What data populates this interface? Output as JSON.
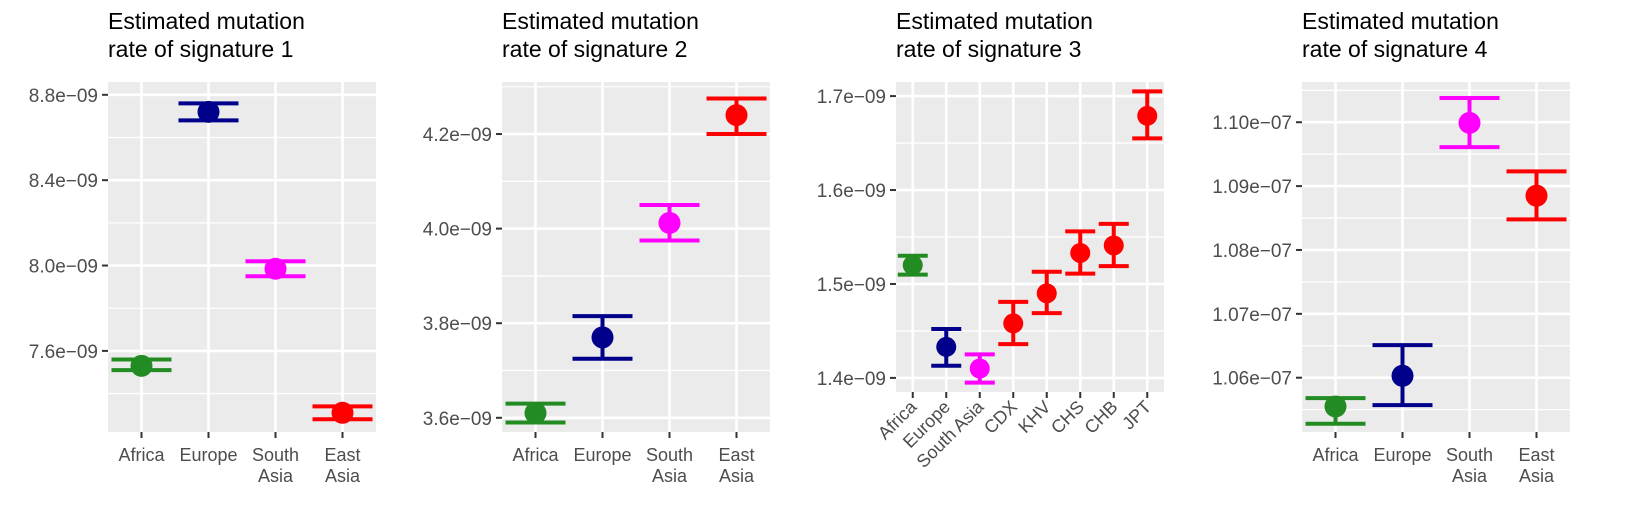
{
  "colors": {
    "panel_background": "#EBEBEB",
    "gridline": "#FFFFFF",
    "tick": "#333333",
    "tick_label": "#4D4D4D",
    "Africa": "#228B22",
    "Europe": "#00008B",
    "South Asia": "#FF00FF",
    "East Asia": "#FF0000"
  },
  "chart_data": [
    {
      "type": "scatter",
      "title_lines": [
        "Estimated mutation",
        "rate of signature 1"
      ],
      "categories": [
        "Africa",
        "Europe",
        "South Asia",
        "East Asia"
      ],
      "category_label_lines": [
        [
          "Africa"
        ],
        [
          "Europe"
        ],
        [
          "South",
          "Asia"
        ],
        [
          "East",
          "Asia"
        ]
      ],
      "values": [
        7.53e-09,
        8.72e-09,
        7.985e-09,
        7.31e-09
      ],
      "error_low": [
        7.51e-09,
        8.68e-09,
        7.95e-09,
        7.28e-09
      ],
      "error_high": [
        7.56e-09,
        8.76e-09,
        8.02e-09,
        7.34e-09
      ],
      "point_colors": [
        "#228B22",
        "#00008B",
        "#FF00FF",
        "#FF0000"
      ],
      "y_ticks": [
        7.6e-09,
        8e-09,
        8.4e-09,
        8.8e-09
      ],
      "y_tick_labels": [
        "7.6e−09",
        "8.0e−09",
        "8.4e−09",
        "8.8e−09"
      ],
      "ylim": [
        7.22e-09,
        8.86e-09
      ],
      "grid": true,
      "rotate_x_labels": false
    },
    {
      "type": "scatter",
      "title_lines": [
        "Estimated mutation",
        "rate of signature 2"
      ],
      "categories": [
        "Africa",
        "Europe",
        "South Asia",
        "East Asia"
      ],
      "category_label_lines": [
        [
          "Africa"
        ],
        [
          "Europe"
        ],
        [
          "South",
          "Asia"
        ],
        [
          "East",
          "Asia"
        ]
      ],
      "values": [
        3.61e-09,
        3.77e-09,
        4.012e-09,
        4.24e-09
      ],
      "error_low": [
        3.59e-09,
        3.725e-09,
        3.975e-09,
        4.2e-09
      ],
      "error_high": [
        3.63e-09,
        3.815e-09,
        4.05e-09,
        4.275e-09
      ],
      "point_colors": [
        "#228B22",
        "#00008B",
        "#FF00FF",
        "#FF0000"
      ],
      "y_ticks": [
        3.6e-09,
        3.8e-09,
        4e-09,
        4.2e-09
      ],
      "y_tick_labels": [
        "3.6e−09",
        "3.8e−09",
        "4.0e−09",
        "4.2e−09"
      ],
      "ylim": [
        3.57e-09,
        4.31e-09
      ],
      "grid": true,
      "rotate_x_labels": false
    },
    {
      "type": "scatter",
      "title_lines": [
        "Estimated mutation",
        "rate of  signature 3"
      ],
      "categories": [
        "Africa",
        "Europe",
        "South Asia",
        "CDX",
        "KHV",
        "CHS",
        "CHB",
        "JPT"
      ],
      "category_label_lines": [
        [
          "Africa"
        ],
        [
          "Europe"
        ],
        [
          "South Asia"
        ],
        [
          "CDX"
        ],
        [
          "KHV"
        ],
        [
          "CHS"
        ],
        [
          "CHB"
        ],
        [
          "JPT"
        ]
      ],
      "values": [
        1.52e-09,
        1.433e-09,
        1.41e-09,
        1.458e-09,
        1.49e-09,
        1.533e-09,
        1.541e-09,
        1.679e-09
      ],
      "error_low": [
        1.51e-09,
        1.413e-09,
        1.395e-09,
        1.436e-09,
        1.469e-09,
        1.511e-09,
        1.519e-09,
        1.655e-09
      ],
      "error_high": [
        1.53e-09,
        1.452e-09,
        1.425e-09,
        1.481e-09,
        1.513e-09,
        1.556e-09,
        1.564e-09,
        1.705e-09
      ],
      "point_colors": [
        "#228B22",
        "#00008B",
        "#FF00FF",
        "#FF0000",
        "#FF0000",
        "#FF0000",
        "#FF0000",
        "#FF0000"
      ],
      "y_ticks": [
        1.4e-09,
        1.5e-09,
        1.6e-09,
        1.7e-09
      ],
      "y_tick_labels": [
        "1.4e−09",
        "1.5e−09",
        "1.6e−09",
        "1.7e−09"
      ],
      "ylim": [
        1.385e-09,
        1.715e-09
      ],
      "grid": true,
      "rotate_x_labels": true
    },
    {
      "type": "scatter",
      "title_lines": [
        "Estimated mutation",
        "rate of signature 4"
      ],
      "categories": [
        "Africa",
        "Europe",
        "South Asia",
        "East Asia"
      ],
      "category_label_lines": [
        [
          "Africa"
        ],
        [
          "Europe"
        ],
        [
          "South",
          "Asia"
        ],
        [
          "East",
          "Asia"
        ]
      ],
      "values": [
        1.0555e-07,
        1.0603e-07,
        1.0999e-07,
        1.0885e-07
      ],
      "error_low": [
        1.0528e-07,
        1.0557e-07,
        1.0961e-07,
        1.0848e-07
      ],
      "error_high": [
        1.0568e-07,
        1.0651e-07,
        1.1038e-07,
        1.0923e-07
      ],
      "point_colors": [
        "#228B22",
        "#00008B",
        "#FF00FF",
        "#FF0000"
      ],
      "y_ticks": [
        1.06e-07,
        1.07e-07,
        1.08e-07,
        1.09e-07,
        1.1e-07
      ],
      "y_tick_labels": [
        "1.06e−07",
        "1.07e−07",
        "1.08e−07",
        "1.09e−07",
        "1.10e−07"
      ],
      "ylim": [
        1.0515e-07,
        1.1063e-07
      ],
      "grid": true,
      "rotate_x_labels": false
    }
  ]
}
